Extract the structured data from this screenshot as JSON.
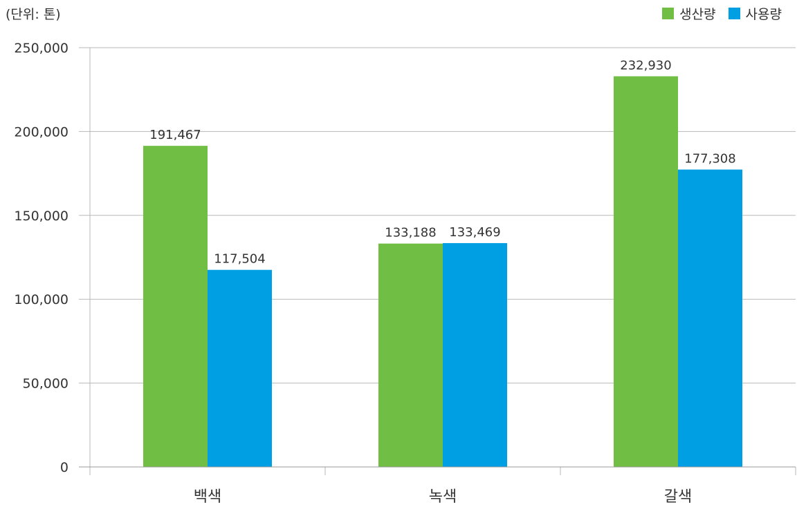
{
  "unit_label": "(단위: 톤)",
  "chart_data": {
    "type": "bar",
    "categories": [
      "백색",
      "녹색",
      "갈색"
    ],
    "series": [
      {
        "name": "생산량",
        "values": [
          191467,
          133188,
          232930
        ],
        "color": "#70bf44"
      },
      {
        "name": "사용량",
        "values": [
          117504,
          133469,
          177308
        ],
        "color": "#009fe3"
      }
    ],
    "data_labels": [
      [
        "191,467",
        "133,188",
        "232,930"
      ],
      [
        "117,504",
        "133,469",
        "177,308"
      ]
    ],
    "yticks": [
      0,
      50000,
      100000,
      150000,
      200000,
      250000
    ],
    "ytick_labels": [
      "0",
      "50,000",
      "100,000",
      "150,000",
      "200,000",
      "250,000"
    ],
    "ylim": [
      0,
      250000
    ],
    "grid": true,
    "legend_position": "top-right",
    "title": "",
    "xlabel": "",
    "ylabel": ""
  }
}
